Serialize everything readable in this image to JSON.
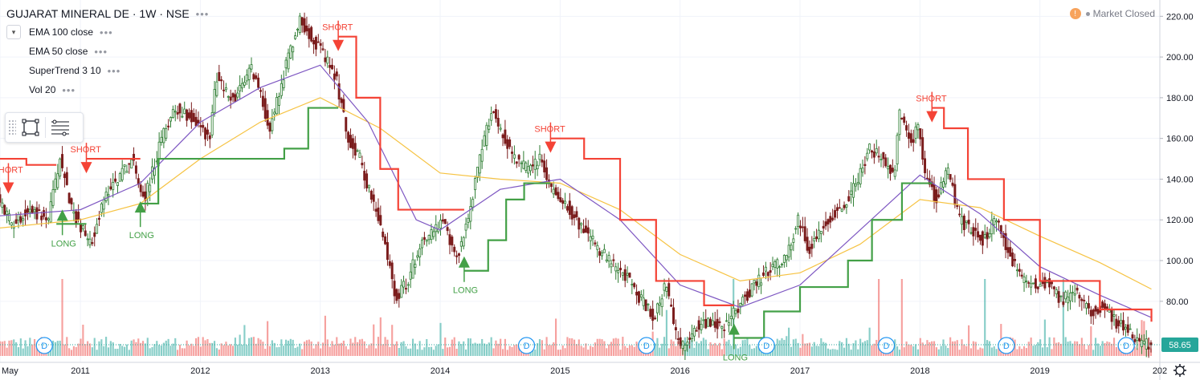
{
  "header": {
    "symbol": "GUJARAT MINERAL DE · 1W · NSE",
    "menu_icon": "more-dots-icon",
    "collapse_icon": "chevron-down-icon"
  },
  "indicators": [
    {
      "label": "EMA 100 close"
    },
    {
      "label": "EMA 50 close"
    },
    {
      "label": "SuperTrend 3 10"
    },
    {
      "label": "Vol 20"
    }
  ],
  "market_status": {
    "label": "Market Closed",
    "icon": "warning-icon"
  },
  "toolbox": {
    "icons": [
      "drag-handle-icon",
      "rectangle-tool-icon",
      "object-tree-icon"
    ]
  },
  "settings_icon": "gear-icon",
  "colors": {
    "up": "#26a69a",
    "down": "#ef5350",
    "candle_body_up": "#2e7d32",
    "candle_body_down": "#7b1c1c",
    "ema100": "#f6c343",
    "ema50": "#7e57c2",
    "supertrend_up": "#43a047",
    "supertrend_down": "#f44336",
    "price_badge": "#26a69a",
    "signal_long": "#43a047",
    "signal_short": "#f44336",
    "dividend": "#2196f3"
  },
  "chart_data": {
    "type": "candlestick",
    "interval": "1W",
    "yaxis": {
      "ticks": [
        80,
        100,
        120,
        140,
        160,
        180,
        200,
        220
      ],
      "tick_labels": [
        "80.00",
        "100.00",
        "120.00",
        "140.00",
        "160.00",
        "180.00",
        "200.00",
        "220.00"
      ],
      "range": [
        50,
        228
      ]
    },
    "xaxis": {
      "tick_labels": [
        "May",
        "2011",
        "2012",
        "2013",
        "2014",
        "2015",
        "2016",
        "2017",
        "2018",
        "2019",
        "202"
      ],
      "tick_years": [
        2010.33,
        2011.0,
        2012.0,
        2013.0,
        2014.0,
        2015.0,
        2016.0,
        2017.0,
        2018.0,
        2019.0,
        2020.0
      ],
      "range": [
        2010.33,
        2020.0
      ]
    },
    "last_price": 58.65,
    "last_price_label": "58.65",
    "price_keypoints": [
      [
        2010.33,
        130
      ],
      [
        2010.45,
        118
      ],
      [
        2010.6,
        125
      ],
      [
        2010.75,
        120
      ],
      [
        2010.85,
        150
      ],
      [
        2010.95,
        125
      ],
      [
        2011.1,
        108
      ],
      [
        2011.25,
        135
      ],
      [
        2011.45,
        150
      ],
      [
        2011.55,
        130
      ],
      [
        2011.7,
        160
      ],
      [
        2011.8,
        175
      ],
      [
        2011.95,
        170
      ],
      [
        2012.1,
        160
      ],
      [
        2012.15,
        190
      ],
      [
        2012.3,
        178
      ],
      [
        2012.45,
        195
      ],
      [
        2012.6,
        165
      ],
      [
        2012.75,
        200
      ],
      [
        2012.85,
        218
      ],
      [
        2012.95,
        210
      ],
      [
        2013.05,
        200
      ],
      [
        2013.15,
        190
      ],
      [
        2013.25,
        160
      ],
      [
        2013.35,
        150
      ],
      [
        2013.45,
        130
      ],
      [
        2013.55,
        110
      ],
      [
        2013.65,
        82
      ],
      [
        2013.75,
        90
      ],
      [
        2013.85,
        108
      ],
      [
        2013.95,
        115
      ],
      [
        2014.05,
        118
      ],
      [
        2014.15,
        100
      ],
      [
        2014.25,
        120
      ],
      [
        2014.35,
        150
      ],
      [
        2014.45,
        175
      ],
      [
        2014.55,
        160
      ],
      [
        2014.65,
        150
      ],
      [
        2014.75,
        145
      ],
      [
        2014.85,
        150
      ],
      [
        2014.95,
        135
      ],
      [
        2015.05,
        130
      ],
      [
        2015.15,
        120
      ],
      [
        2015.25,
        112
      ],
      [
        2015.35,
        105
      ],
      [
        2015.5,
        95
      ],
      [
        2015.6,
        90
      ],
      [
        2015.7,
        80
      ],
      [
        2015.8,
        72
      ],
      [
        2015.9,
        88
      ],
      [
        2016.0,
        60
      ],
      [
        2016.05,
        57
      ],
      [
        2016.15,
        68
      ],
      [
        2016.25,
        70
      ],
      [
        2016.4,
        68
      ],
      [
        2016.5,
        77
      ],
      [
        2016.6,
        85
      ],
      [
        2016.75,
        95
      ],
      [
        2016.9,
        100
      ],
      [
        2017.0,
        120
      ],
      [
        2017.1,
        105
      ],
      [
        2017.25,
        120
      ],
      [
        2017.4,
        128
      ],
      [
        2017.5,
        140
      ],
      [
        2017.6,
        155
      ],
      [
        2017.7,
        150
      ],
      [
        2017.8,
        140
      ],
      [
        2017.85,
        172
      ],
      [
        2017.95,
        158
      ],
      [
        2018.0,
        168
      ],
      [
        2018.05,
        145
      ],
      [
        2018.15,
        130
      ],
      [
        2018.25,
        145
      ],
      [
        2018.35,
        120
      ],
      [
        2018.45,
        115
      ],
      [
        2018.55,
        110
      ],
      [
        2018.65,
        120
      ],
      [
        2018.75,
        105
      ],
      [
        2018.85,
        92
      ],
      [
        2018.95,
        88
      ],
      [
        2019.1,
        90
      ],
      [
        2019.2,
        80
      ],
      [
        2019.3,
        85
      ],
      [
        2019.45,
        75
      ],
      [
        2019.55,
        78
      ],
      [
        2019.65,
        70
      ],
      [
        2019.75,
        65
      ],
      [
        2019.85,
        60
      ],
      [
        2019.93,
        58.65
      ]
    ],
    "series": [
      {
        "name": "EMA 100 close",
        "points": [
          [
            2010.33,
            116
          ],
          [
            2011.0,
            120
          ],
          [
            2011.5,
            128
          ],
          [
            2012.0,
            150
          ],
          [
            2012.5,
            168
          ],
          [
            2013.0,
            180
          ],
          [
            2013.5,
            165
          ],
          [
            2014.0,
            143
          ],
          [
            2014.5,
            140
          ],
          [
            2015.0,
            138
          ],
          [
            2015.5,
            125
          ],
          [
            2016.0,
            103
          ],
          [
            2016.5,
            90
          ],
          [
            2017.0,
            94
          ],
          [
            2017.5,
            108
          ],
          [
            2018.0,
            130
          ],
          [
            2018.5,
            126
          ],
          [
            2019.0,
            112
          ],
          [
            2019.5,
            99
          ],
          [
            2019.93,
            86
          ]
        ]
      },
      {
        "name": "EMA 50 close",
        "points": [
          [
            2010.33,
            122
          ],
          [
            2011.0,
            125
          ],
          [
            2011.5,
            138
          ],
          [
            2012.0,
            168
          ],
          [
            2012.5,
            185
          ],
          [
            2013.0,
            196
          ],
          [
            2013.4,
            168
          ],
          [
            2013.8,
            120
          ],
          [
            2014.0,
            115
          ],
          [
            2014.5,
            135
          ],
          [
            2015.0,
            140
          ],
          [
            2015.5,
            120
          ],
          [
            2016.0,
            88
          ],
          [
            2016.5,
            77
          ],
          [
            2017.0,
            88
          ],
          [
            2017.5,
            115
          ],
          [
            2018.0,
            142
          ],
          [
            2018.5,
            123
          ],
          [
            2019.0,
            97
          ],
          [
            2019.5,
            83
          ],
          [
            2019.93,
            72
          ]
        ]
      },
      {
        "name": "SuperTrend 3 10",
        "segments": [
          {
            "trend": "down",
            "points": [
              [
                2010.33,
                150
              ],
              [
                2010.55,
                147
              ],
              [
                2010.8,
                147
              ]
            ]
          },
          {
            "trend": "up",
            "points": [
              [
                2010.8,
                118
              ],
              [
                2011.05,
                118
              ]
            ]
          },
          {
            "trend": "down",
            "points": [
              [
                2011.05,
                150
              ],
              [
                2011.5,
                150
              ]
            ]
          },
          {
            "trend": "up",
            "points": [
              [
                2011.5,
                128
              ],
              [
                2011.65,
                150
              ],
              [
                2012.0,
                150
              ],
              [
                2012.5,
                150
              ],
              [
                2012.7,
                155
              ],
              [
                2012.9,
                175
              ],
              [
                2013.15,
                175
              ]
            ]
          },
          {
            "trend": "down",
            "points": [
              [
                2013.15,
                210
              ],
              [
                2013.3,
                180
              ],
              [
                2013.5,
                145
              ],
              [
                2013.65,
                125
              ],
              [
                2014.2,
                125
              ]
            ]
          },
          {
            "trend": "up",
            "points": [
              [
                2014.2,
                95
              ],
              [
                2014.4,
                110
              ],
              [
                2014.55,
                130
              ],
              [
                2014.7,
                138
              ],
              [
                2014.92,
                138
              ]
            ]
          },
          {
            "trend": "down",
            "points": [
              [
                2014.92,
                160
              ],
              [
                2015.2,
                150
              ],
              [
                2015.5,
                120
              ],
              [
                2015.8,
                90
              ],
              [
                2016.2,
                78
              ],
              [
                2016.45,
                78
              ]
            ]
          },
          {
            "trend": "up",
            "points": [
              [
                2016.45,
                62
              ],
              [
                2016.7,
                75
              ],
              [
                2017.0,
                87
              ],
              [
                2017.4,
                100
              ],
              [
                2017.6,
                120
              ],
              [
                2017.85,
                138
              ],
              [
                2018.1,
                138
              ]
            ]
          },
          {
            "trend": "down",
            "points": [
              [
                2018.1,
                175
              ],
              [
                2018.2,
                165
              ],
              [
                2018.4,
                140
              ],
              [
                2018.7,
                120
              ],
              [
                2019.0,
                90
              ],
              [
                2019.5,
                76
              ],
              [
                2019.93,
                70
              ]
            ]
          }
        ]
      },
      {
        "name": "Vol 20",
        "kind": "volume",
        "spike_years": [
          2010.85,
          2016.45,
          2017.65,
          2017.85,
          2018.55,
          2019.2
        ]
      }
    ],
    "signals": [
      {
        "label": "SHORT",
        "type": "short",
        "x": 2010.4,
        "price": 140
      },
      {
        "label": "LONG",
        "type": "long",
        "x": 2010.85,
        "price": 118
      },
      {
        "label": "SHORT",
        "type": "short",
        "x": 2011.05,
        "price": 150
      },
      {
        "label": "LONG",
        "type": "long",
        "x": 2011.5,
        "price": 122
      },
      {
        "label": "SHORT",
        "type": "short",
        "x": 2013.15,
        "price": 210
      },
      {
        "label": "LONG",
        "type": "long",
        "x": 2014.2,
        "price": 95
      },
      {
        "label": "SHORT",
        "type": "short",
        "x": 2014.92,
        "price": 160
      },
      {
        "label": "LONG",
        "type": "long",
        "x": 2016.45,
        "price": 62
      },
      {
        "label": "SHORT",
        "type": "short",
        "x": 2018.1,
        "price": 175
      }
    ],
    "dividends": [
      {
        "x": 2010.7,
        "label": "D"
      },
      {
        "x": 2014.72,
        "label": "D"
      },
      {
        "x": 2015.72,
        "label": "D"
      },
      {
        "x": 2016.72,
        "label": "D"
      },
      {
        "x": 2017.72,
        "label": "D"
      },
      {
        "x": 2018.72,
        "label": "D"
      },
      {
        "x": 2019.72,
        "label": "D"
      }
    ],
    "grid": true
  }
}
